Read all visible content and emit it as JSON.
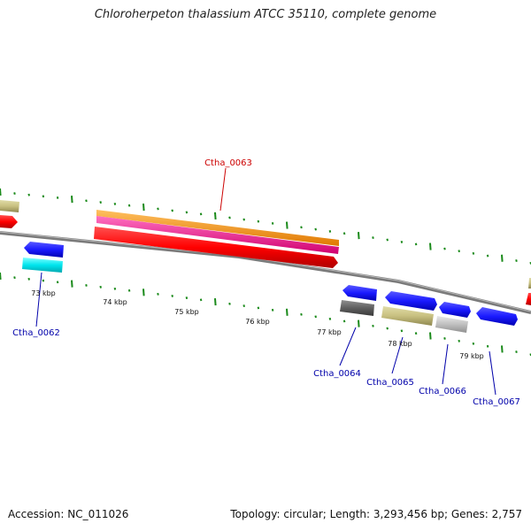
{
  "title": "Chloroherpeton thalassium ATCC 35110, complete genome",
  "footer": {
    "accession": "Accession: NC_011026",
    "topology": "Topology: circular; Length: 3,293,456 bp; Genes: 2,757"
  },
  "axis": {
    "ticks": [
      "73 kbp",
      "74 kbp",
      "75 kbp",
      "76 kbp",
      "77 kbp",
      "78 kbp",
      "79 kbp"
    ]
  },
  "genes": {
    "ctha_0062": "Ctha_0062",
    "ctha_0063": "Ctha_0063",
    "ctha_0064": "Ctha_0064",
    "ctha_0065": "Ctha_0065",
    "ctha_0066": "Ctha_0066",
    "ctha_0067": "Ctha_0067"
  },
  "colors": {
    "backbone": "#808080",
    "cds_forward_red": "#ff0000",
    "cds_blue": "#1a1aff",
    "cyan": "#00e5ee",
    "orange": "#ff9900",
    "magenta": "#ff1493",
    "khaki": "#c8c080",
    "dark_gray": "#606060",
    "light_gray": "#c0c0c0",
    "tick_green": "#1a8a1a",
    "red_label": "#cc0000",
    "blue_label": "#0000aa"
  }
}
